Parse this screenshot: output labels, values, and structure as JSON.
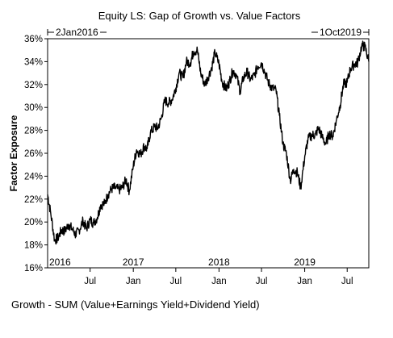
{
  "chart_data": {
    "type": "line",
    "title": "Equity LS: Gap of Growth vs. Value Factors",
    "ylabel": "Factor Exposure",
    "xlabel": "",
    "ylim": [
      16,
      36
    ],
    "x_range": [
      "2016-01-02",
      "2019-10-01"
    ],
    "start_label": "2Jan2016",
    "end_label": "1Oct2019",
    "y_ticks": [
      16,
      18,
      20,
      22,
      24,
      26,
      28,
      30,
      32,
      34,
      36
    ],
    "y_tick_labels": [
      "16%",
      "18%",
      "20%",
      "22%",
      "24%",
      "26%",
      "28%",
      "30%",
      "32%",
      "34%",
      "36%"
    ],
    "x_ticks": [
      {
        "date": "2016-07-01",
        "label": "Jul"
      },
      {
        "date": "2017-01-01",
        "label": "Jan"
      },
      {
        "date": "2017-07-01",
        "label": "Jul"
      },
      {
        "date": "2018-01-01",
        "label": "Jan"
      },
      {
        "date": "2018-07-01",
        "label": "Jul"
      },
      {
        "date": "2019-01-01",
        "label": "Jan"
      },
      {
        "date": "2019-07-01",
        "label": "Jul"
      }
    ],
    "year_labels": [
      {
        "date": "2016-01-01",
        "label": "2016"
      },
      {
        "date": "2017-01-01",
        "label": "2017"
      },
      {
        "date": "2018-01-01",
        "label": "2018"
      },
      {
        "date": "2019-01-01",
        "label": "2019"
      }
    ],
    "grid": false,
    "legend": "bottom-left",
    "series": [
      {
        "name": "Growth - SUM (Value+Earnings Yield+Dividend Yield)",
        "color": "#000000",
        "x": [
          "2016-01-02",
          "2016-01-15",
          "2016-02-01",
          "2016-02-15",
          "2016-03-01",
          "2016-03-15",
          "2016-04-01",
          "2016-04-15",
          "2016-05-01",
          "2016-05-15",
          "2016-06-01",
          "2016-06-15",
          "2016-07-01",
          "2016-07-15",
          "2016-08-01",
          "2016-08-15",
          "2016-09-01",
          "2016-09-15",
          "2016-10-01",
          "2016-10-15",
          "2016-11-01",
          "2016-11-15",
          "2016-12-01",
          "2016-12-15",
          "2017-01-01",
          "2017-01-15",
          "2017-02-01",
          "2017-02-15",
          "2017-03-01",
          "2017-03-15",
          "2017-04-01",
          "2017-04-15",
          "2017-05-01",
          "2017-05-15",
          "2017-06-01",
          "2017-06-15",
          "2017-07-01",
          "2017-07-15",
          "2017-08-01",
          "2017-08-15",
          "2017-09-01",
          "2017-09-15",
          "2017-10-01",
          "2017-10-15",
          "2017-11-01",
          "2017-11-15",
          "2017-12-01",
          "2017-12-15",
          "2018-01-01",
          "2018-01-15",
          "2018-02-01",
          "2018-02-15",
          "2018-03-01",
          "2018-03-15",
          "2018-04-01",
          "2018-04-15",
          "2018-05-01",
          "2018-05-15",
          "2018-06-01",
          "2018-06-15",
          "2018-07-01",
          "2018-07-15",
          "2018-08-01",
          "2018-08-15",
          "2018-09-01",
          "2018-09-15",
          "2018-10-01",
          "2018-10-15",
          "2018-11-01",
          "2018-11-15",
          "2018-12-01",
          "2018-12-15",
          "2019-01-01",
          "2019-01-15",
          "2019-02-01",
          "2019-02-15",
          "2019-03-01",
          "2019-03-15",
          "2019-04-01",
          "2019-04-15",
          "2019-05-01",
          "2019-05-15",
          "2019-06-01",
          "2019-06-15",
          "2019-07-01",
          "2019-07-15",
          "2019-08-01",
          "2019-08-15",
          "2019-09-01",
          "2019-09-15",
          "2019-10-01"
        ],
        "values": [
          22.4,
          20.8,
          18.4,
          18.6,
          19.3,
          19.2,
          19.8,
          19.4,
          18.9,
          19.3,
          20.1,
          19.4,
          20.2,
          19.9,
          20.4,
          21.5,
          21.6,
          22.4,
          22.9,
          23.0,
          22.8,
          23.0,
          23.7,
          22.7,
          24.9,
          26.3,
          25.9,
          26.6,
          26.4,
          27.8,
          28.3,
          28.2,
          29.1,
          30.6,
          30.4,
          30.7,
          31.7,
          33.0,
          32.6,
          34.0,
          33.9,
          34.9,
          35.0,
          33.0,
          32.0,
          32.6,
          33.5,
          34.8,
          33.8,
          32.2,
          31.6,
          32.3,
          33.2,
          32.9,
          31.4,
          32.6,
          33.1,
          32.4,
          32.8,
          33.6,
          33.9,
          33.1,
          32.1,
          31.7,
          31.5,
          29.3,
          26.8,
          26.0,
          23.6,
          24.6,
          24.3,
          23.0,
          25.7,
          27.2,
          27.6,
          27.6,
          28.2,
          27.5,
          26.8,
          27.7,
          27.5,
          28.8,
          30.2,
          32.0,
          32.2,
          33.4,
          33.8,
          33.9,
          35.4,
          35.3,
          34.0
        ]
      }
    ]
  }
}
